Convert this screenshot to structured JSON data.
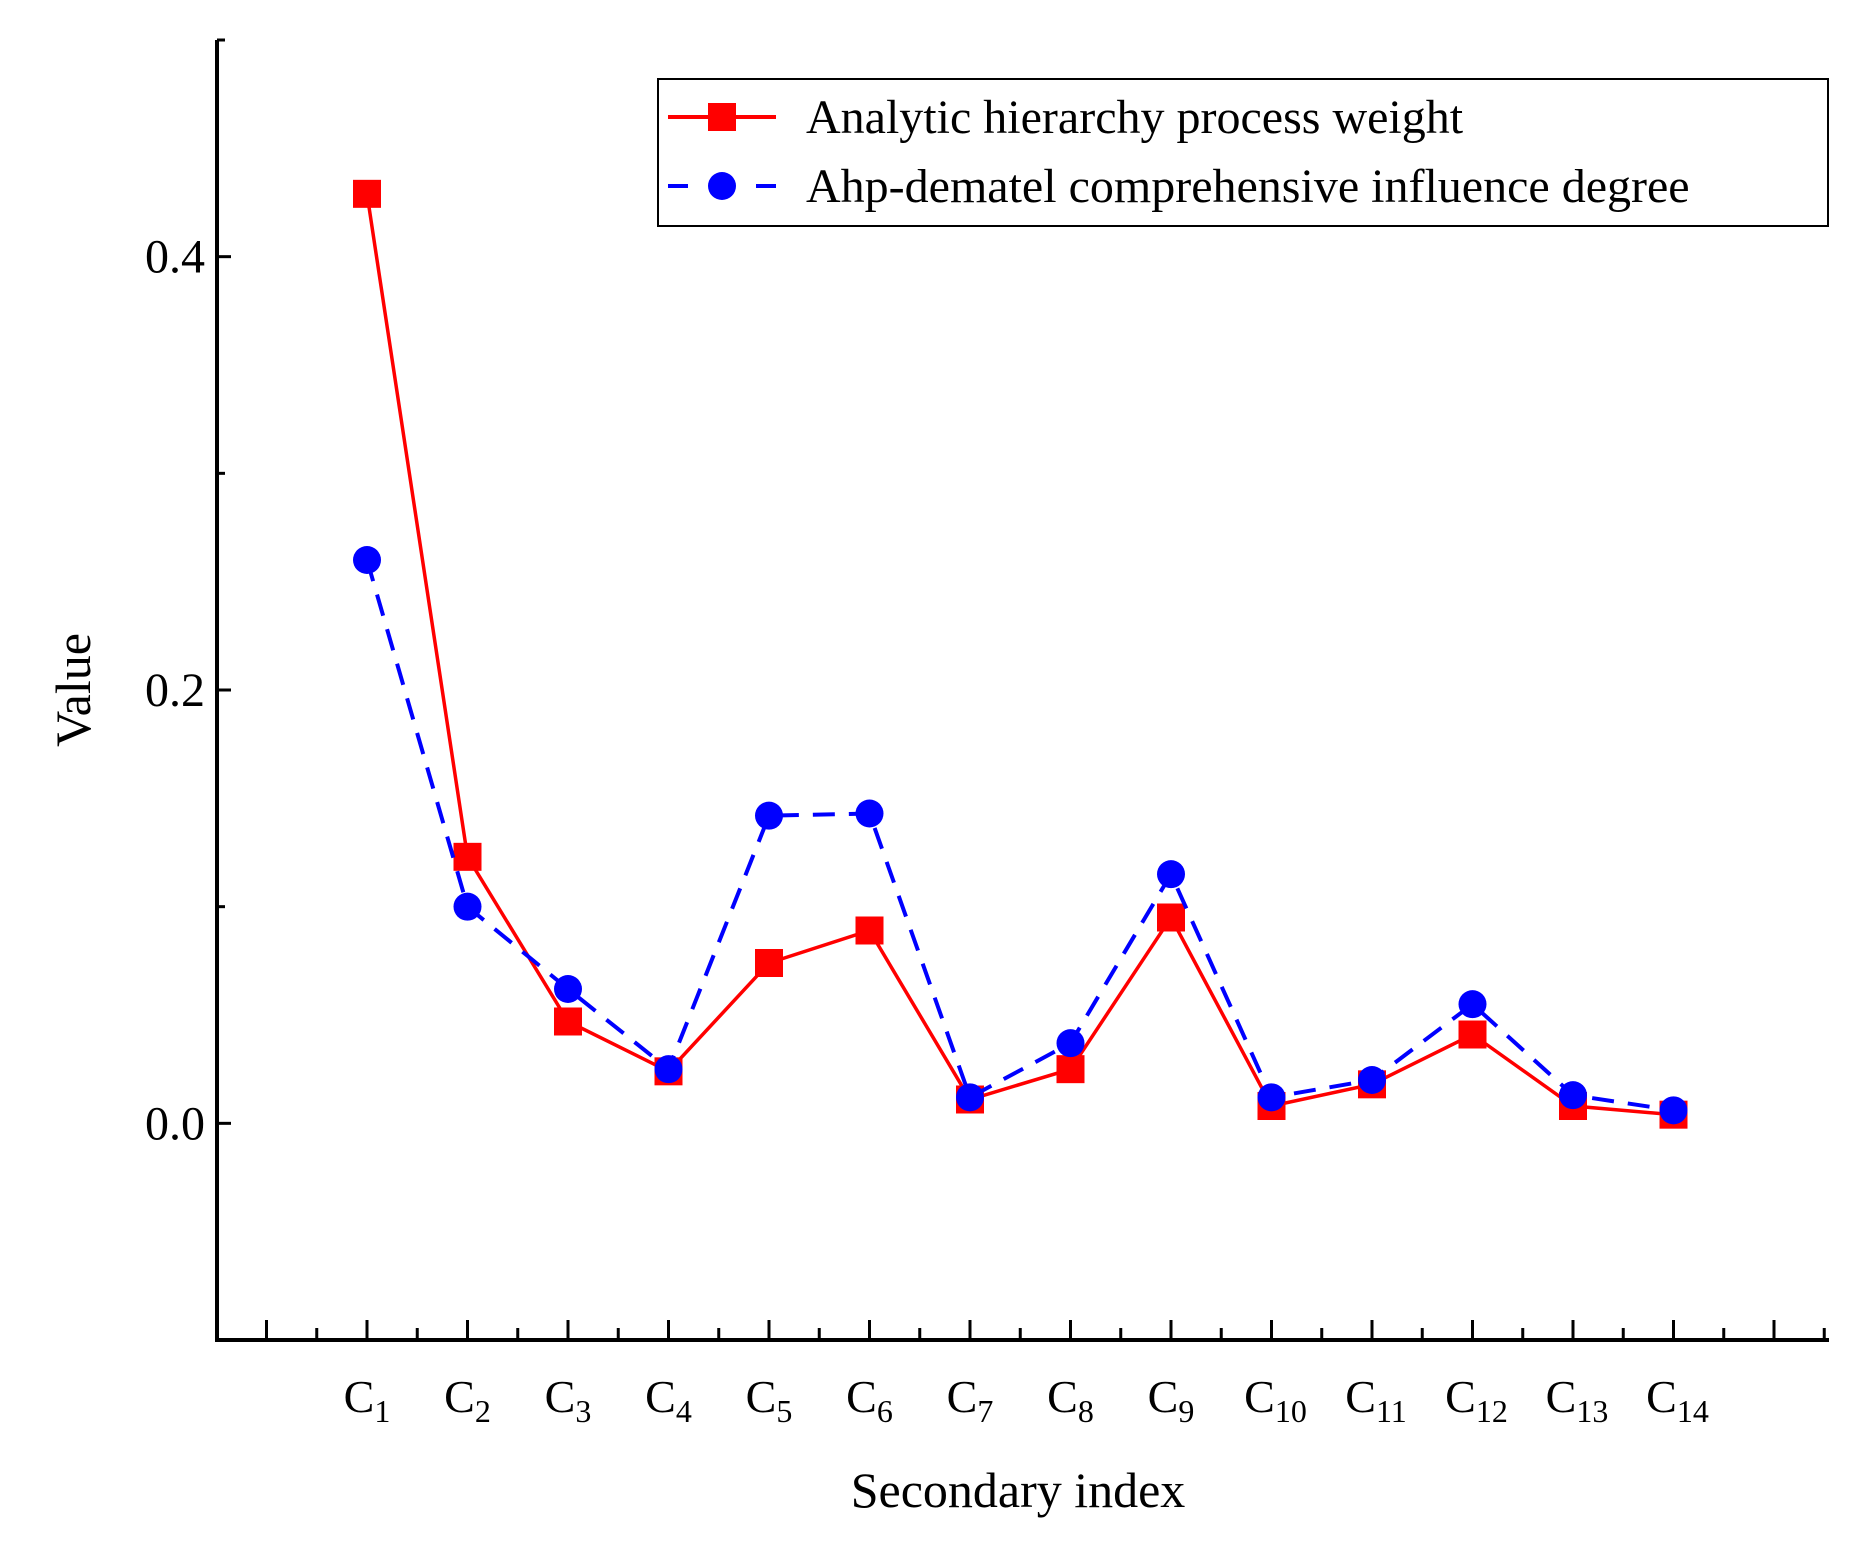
{
  "chart_data": {
    "type": "line",
    "title": "",
    "xlabel": "Secondary index",
    "ylabel": "Value",
    "ylim": [
      -0.1,
      0.5
    ],
    "yticks": [
      "0.0",
      "0.2",
      "0.4"
    ],
    "ytick_values": [
      0.0,
      0.2,
      0.4
    ],
    "categories": [
      {
        "main": "C",
        "sub": "1"
      },
      {
        "main": "C",
        "sub": "2"
      },
      {
        "main": "C",
        "sub": "3"
      },
      {
        "main": "C",
        "sub": "4"
      },
      {
        "main": "C",
        "sub": "5"
      },
      {
        "main": "C",
        "sub": "6"
      },
      {
        "main": "C",
        "sub": "7"
      },
      {
        "main": "C",
        "sub": "8"
      },
      {
        "main": "C",
        "sub": "9"
      },
      {
        "main": "C",
        "sub": "10"
      },
      {
        "main": "C",
        "sub": "11"
      },
      {
        "main": "C",
        "sub": "12"
      },
      {
        "main": "C",
        "sub": "13"
      },
      {
        "main": "C",
        "sub": "14"
      }
    ],
    "legend_position": "top-right",
    "series": [
      {
        "name": "Analytic hierarchy process weight",
        "color": "#ff0000",
        "line_style": "solid",
        "marker": "square",
        "values": [
          0.429,
          0.123,
          0.047,
          0.024,
          0.074,
          0.089,
          0.011,
          0.025,
          0.095,
          0.008,
          0.018,
          0.041,
          0.008,
          0.004
        ]
      },
      {
        "name": "Ahp-dematel comprehensive influence degree",
        "color": "#0000ff",
        "line_style": "dashed",
        "marker": "circle",
        "values": [
          0.26,
          0.1,
          0.062,
          0.025,
          0.142,
          0.143,
          0.012,
          0.037,
          0.115,
          0.012,
          0.02,
          0.055,
          0.013,
          0.006
        ]
      }
    ]
  }
}
